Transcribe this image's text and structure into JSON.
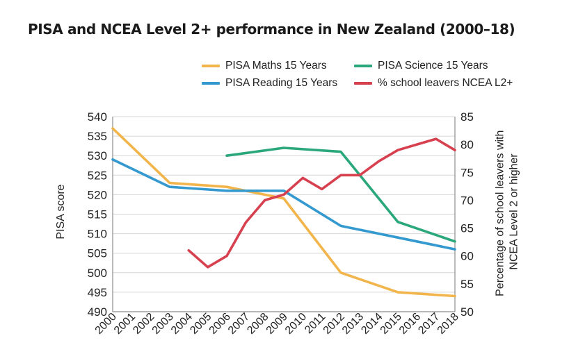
{
  "chart_data": {
    "type": "line",
    "title": "PISA and NCEA Level 2+ performance in New Zealand (2000–18)",
    "categories": [
      "2000",
      "2001",
      "2002",
      "2003",
      "2004",
      "2005",
      "2006",
      "2007",
      "2008",
      "2009",
      "2010",
      "2011",
      "2012",
      "2013",
      "2014",
      "2015",
      "2016",
      "2017",
      "2018"
    ],
    "ylabel_left": "PISA score",
    "ylabel_right": "Percentage of school leavers with NCEA Level 2 or higher",
    "ylim_left": [
      490,
      540
    ],
    "yticks_left": [
      490,
      495,
      500,
      505,
      510,
      515,
      520,
      525,
      530,
      535,
      540
    ],
    "ylim_right": [
      50,
      85
    ],
    "yticks_right": [
      50,
      55,
      60,
      65,
      70,
      75,
      80,
      85
    ],
    "grid": true,
    "legend_position": "top",
    "series": [
      {
        "name": "PISA Maths 15 Years",
        "axis": "left",
        "color": "#f2b54c",
        "points": [
          [
            2000,
            537
          ],
          [
            2003,
            523
          ],
          [
            2006,
            522
          ],
          [
            2009,
            519
          ],
          [
            2012,
            500
          ],
          [
            2015,
            495
          ],
          [
            2018,
            494
          ]
        ]
      },
      {
        "name": "PISA Reading 15 Years",
        "axis": "left",
        "color": "#3499cf",
        "points": [
          [
            2000,
            529
          ],
          [
            2003,
            522
          ],
          [
            2006,
            521
          ],
          [
            2009,
            521
          ],
          [
            2012,
            512
          ],
          [
            2015,
            509
          ],
          [
            2018,
            506
          ]
        ]
      },
      {
        "name": "PISA Science 15 Years",
        "axis": "left",
        "color": "#2aa77b",
        "points": [
          [
            2006,
            530
          ],
          [
            2009,
            532
          ],
          [
            2012,
            531
          ],
          [
            2015,
            513
          ],
          [
            2018,
            508
          ]
        ]
      },
      {
        "name": "% school leavers NCEA L2+",
        "axis": "right",
        "color": "#d6404f",
        "points": [
          [
            2004,
            61
          ],
          [
            2005,
            58
          ],
          [
            2006,
            60
          ],
          [
            2007,
            66
          ],
          [
            2008,
            70
          ],
          [
            2009,
            71
          ],
          [
            2010,
            74
          ],
          [
            2011,
            72
          ],
          [
            2012,
            74.5
          ],
          [
            2013,
            74.5
          ],
          [
            2014,
            77
          ],
          [
            2015,
            79
          ],
          [
            2016,
            80
          ],
          [
            2017,
            81
          ],
          [
            2018,
            79
          ]
        ]
      }
    ]
  }
}
